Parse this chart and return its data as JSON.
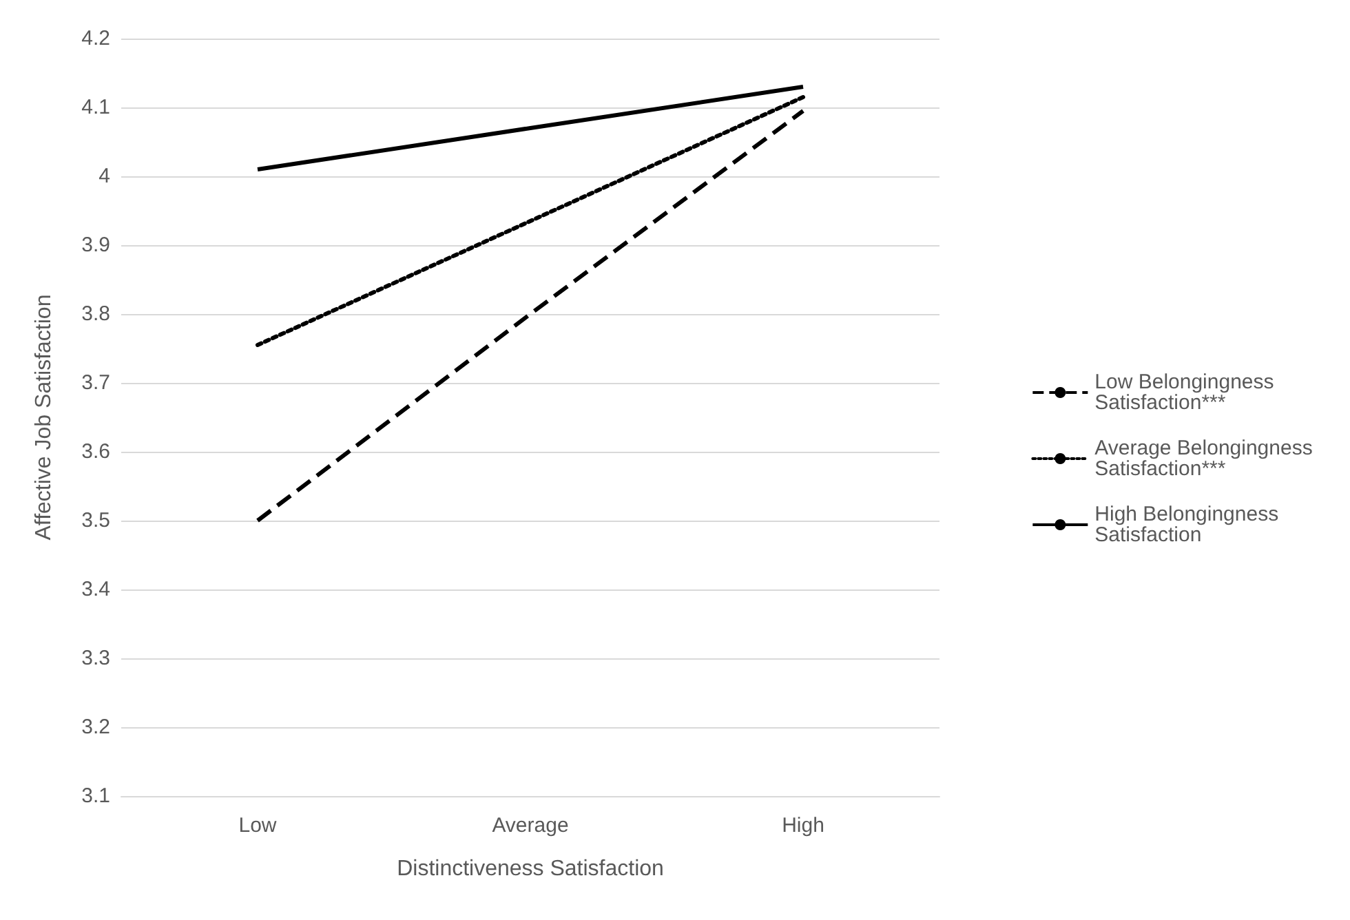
{
  "chart_data": {
    "type": "line",
    "xlabel": "Distinctiveness Satisfaction",
    "ylabel": "Affective Job Satisfaction",
    "categories": [
      "Low",
      "Average",
      "High"
    ],
    "series": [
      {
        "name": "Low Belongingness Satisfaction***",
        "color": "#000000",
        "line_style": "dashed",
        "values": [
          3.5,
          3.8,
          4.095
        ]
      },
      {
        "name": "Average Belongingness Satisfaction***",
        "color": "#000000",
        "line_style": "dotted",
        "values": [
          3.755,
          3.935,
          4.115
        ]
      },
      {
        "name": "High Belongingness Satisfaction",
        "color": "#000000",
        "line_style": "solid",
        "values": [
          4.01,
          4.07,
          4.13
        ]
      }
    ],
    "ylim": [
      3.1,
      4.2
    ],
    "yticks": [
      3.1,
      3.2,
      3.3,
      3.4,
      3.5,
      3.6,
      3.7,
      3.8,
      3.9,
      4,
      4.1,
      4.2
    ],
    "grid": "y",
    "legend": "right",
    "marker": "none"
  }
}
